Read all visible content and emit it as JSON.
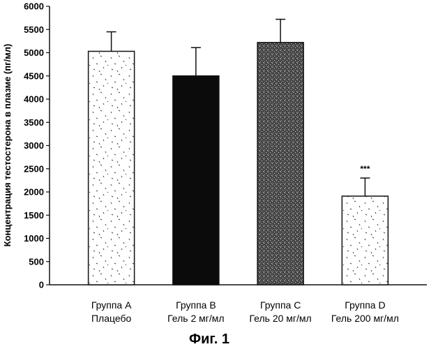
{
  "figure_caption": "Фиг. 1",
  "chart_data": {
    "type": "bar",
    "categories": [
      [
        "Группа A",
        "Плацебо"
      ],
      [
        "Группа B",
        "Гель 2 мг/мл"
      ],
      [
        "Группа C",
        "Гель 20 мг/мл"
      ],
      [
        "Группа D",
        "Гель 200 мг/мл"
      ]
    ],
    "values": [
      5030,
      4500,
      5220,
      1910
    ],
    "error_upper": [
      420,
      610,
      500,
      390
    ],
    "annotations": [
      "",
      "",
      "",
      "***"
    ],
    "fills": [
      "speckled-white",
      "solid-black",
      "dense-grey",
      "speckled-white"
    ],
    "ylabel": "Концентрация тестостерона в плазме (пг/мл)",
    "xlabel": "",
    "title": "",
    "ylim": [
      0,
      6000
    ],
    "yticks": [
      0,
      500,
      1000,
      1500,
      2000,
      2500,
      3000,
      3500,
      4000,
      4500,
      5000,
      5500,
      6000
    ],
    "grid": false,
    "colors": {
      "axis": "#111111",
      "bar_outline": "#111111",
      "solid_fill": "#0b0b0b",
      "grey_fill": "#5a5a5a",
      "light_fill": "#ffffff"
    }
  }
}
